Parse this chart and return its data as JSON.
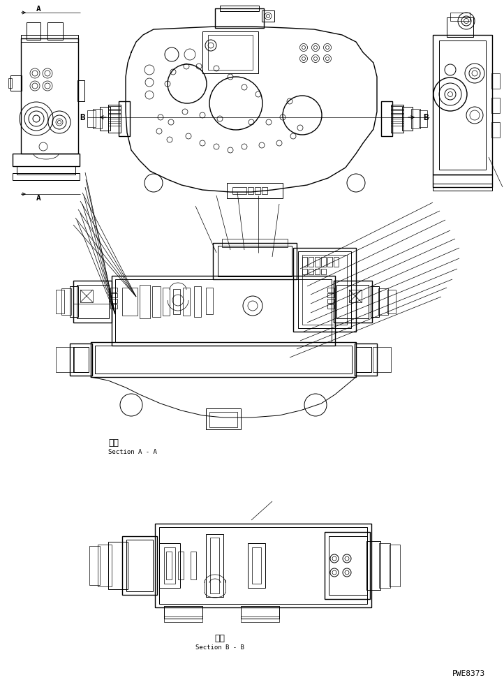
{
  "bg_color": "#ffffff",
  "line_color": "#000000",
  "figsize": [
    7.22,
    9.84
  ],
  "dpi": 100,
  "section_aa_kanji": "断面",
  "section_aa_text": "Section A - A",
  "section_bb_kanji": "断面",
  "section_bb_text": "Section B - B",
  "part_number": "PWE8373",
  "label_A": "A",
  "label_B": "B"
}
